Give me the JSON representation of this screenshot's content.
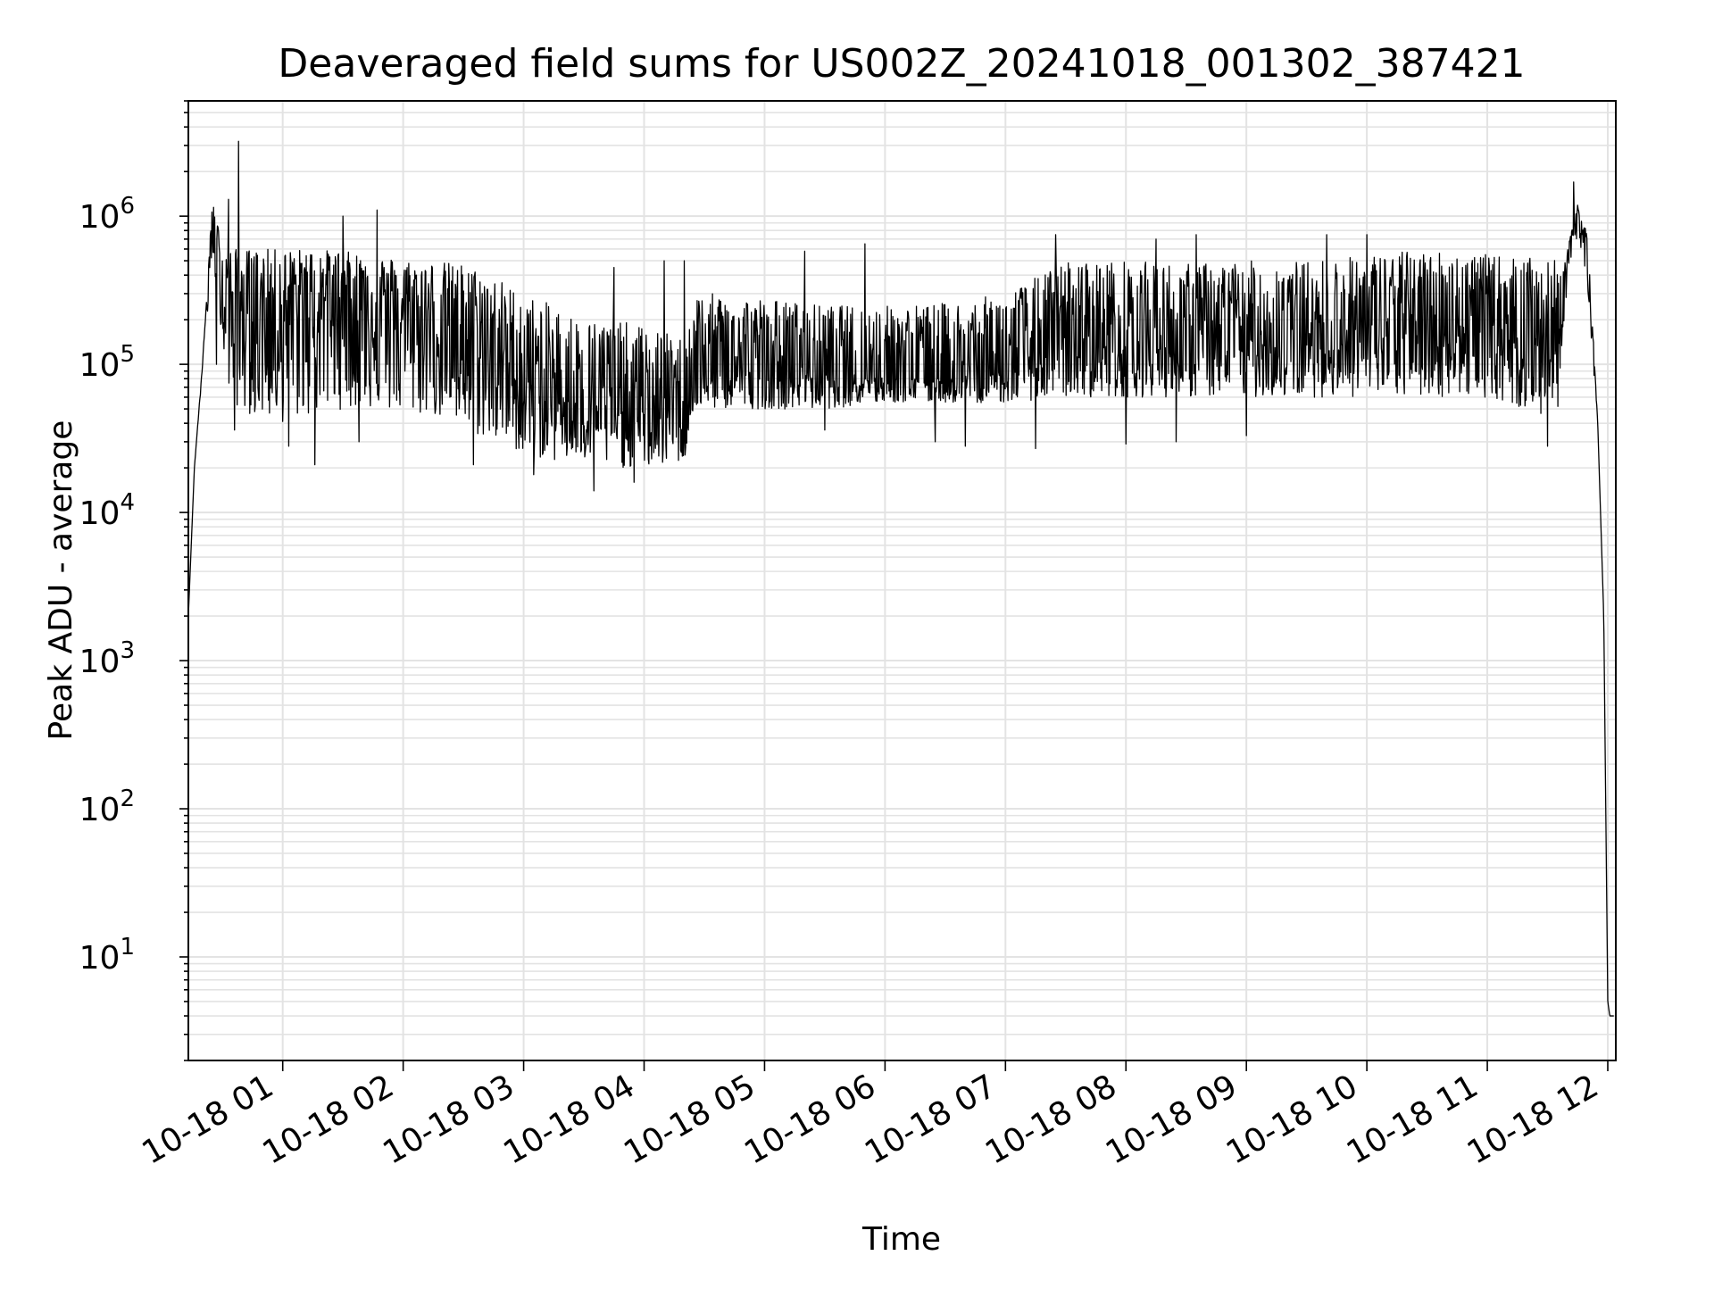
{
  "chart_data": {
    "type": "line",
    "title": "Deaveraged field sums for US002Z_20241018_001302_387421",
    "xlabel": "Time",
    "ylabel": "Peak ADU - average",
    "x_scale": "time",
    "y_scale": "log",
    "xlim": [
      "2024-10-18 00:13",
      "2024-10-18 12:04"
    ],
    "ylim": [
      2,
      6000000
    ],
    "grid": {
      "major": true,
      "minor": true
    },
    "x_ticks": [
      {
        "t": "2024-10-18 01:00",
        "label": "10-18 01"
      },
      {
        "t": "2024-10-18 02:00",
        "label": "10-18 02"
      },
      {
        "t": "2024-10-18 03:00",
        "label": "10-18 03"
      },
      {
        "t": "2024-10-18 04:00",
        "label": "10-18 04"
      },
      {
        "t": "2024-10-18 05:00",
        "label": "10-18 05"
      },
      {
        "t": "2024-10-18 06:00",
        "label": "10-18 06"
      },
      {
        "t": "2024-10-18 07:00",
        "label": "10-18 07"
      },
      {
        "t": "2024-10-18 08:00",
        "label": "10-18 08"
      },
      {
        "t": "2024-10-18 09:00",
        "label": "10-18 09"
      },
      {
        "t": "2024-10-18 10:00",
        "label": "10-18 10"
      },
      {
        "t": "2024-10-18 11:00",
        "label": "10-18 11"
      },
      {
        "t": "2024-10-18 12:00",
        "label": "10-18 12"
      }
    ],
    "y_ticks": [
      {
        "value": 10,
        "base": "10",
        "exp": "1"
      },
      {
        "value": 100,
        "base": "10",
        "exp": "2"
      },
      {
        "value": 1000,
        "base": "10",
        "exp": "3"
      },
      {
        "value": 10000,
        "base": "10",
        "exp": "4"
      },
      {
        "value": 100000,
        "base": "10",
        "exp": "5"
      },
      {
        "value": 1000000,
        "base": "10",
        "exp": "6"
      }
    ],
    "series": [
      {
        "color": "#000000",
        "envelope": {
          "x": [
            "2024-10-18 00:13",
            "2024-10-18 00:16",
            "2024-10-18 00:20",
            "2024-10-18 00:25",
            "2024-10-18 00:30",
            "2024-10-18 00:33",
            "2024-10-18 00:38",
            "2024-10-18 00:45",
            "2024-10-18 01:00",
            "2024-10-18 01:15",
            "2024-10-18 01:30",
            "2024-10-18 01:45",
            "2024-10-18 02:00",
            "2024-10-18 02:15",
            "2024-10-18 02:30",
            "2024-10-18 02:45",
            "2024-10-18 03:00",
            "2024-10-18 03:15",
            "2024-10-18 03:30",
            "2024-10-18 03:45",
            "2024-10-18 04:00",
            "2024-10-18 04:20",
            "2024-10-18 04:25",
            "2024-10-18 04:40",
            "2024-10-18 05:00",
            "2024-10-18 05:30",
            "2024-10-18 06:00",
            "2024-10-18 06:30",
            "2024-10-18 07:00",
            "2024-10-18 07:30",
            "2024-10-18 08:00",
            "2024-10-18 08:30",
            "2024-10-18 09:00",
            "2024-10-18 09:30",
            "2024-10-18 10:00",
            "2024-10-18 10:30",
            "2024-10-18 11:00",
            "2024-10-18 11:35",
            "2024-10-18 11:40",
            "2024-10-18 11:45",
            "2024-10-18 11:50",
            "2024-10-18 11:55",
            "2024-10-18 11:58",
            "2024-10-18 12:00",
            "2024-10-18 12:01",
            "2024-10-18 12:03"
          ],
          "low": [
            2000,
            20000,
            90000,
            500000,
            150000,
            60000,
            50000,
            45000,
            40000,
            45000,
            50000,
            50000,
            45000,
            45000,
            35000,
            30000,
            25000,
            22000,
            22000,
            20000,
            20000,
            22000,
            50000,
            50000,
            50000,
            50000,
            55000,
            55000,
            55000,
            60000,
            60000,
            60000,
            60000,
            60000,
            60000,
            60000,
            60000,
            40000,
            400000,
            700000,
            300000,
            40000,
            2000,
            5,
            4,
            4
          ],
          "mid": [
            2000,
            20000,
            100000,
            1000000,
            300000,
            250000,
            250000,
            230000,
            220000,
            280000,
            300000,
            250000,
            200000,
            180000,
            150000,
            110000,
            70000,
            60000,
            55000,
            50000,
            45000,
            45000,
            85000,
            90000,
            90000,
            85000,
            85000,
            80000,
            90000,
            130000,
            140000,
            130000,
            140000,
            140000,
            150000,
            180000,
            170000,
            160000,
            550000,
            1000000,
            600000,
            40000,
            2000,
            5,
            4,
            4
          ],
          "high": [
            2000,
            20000,
            100000,
            1300000,
            650000,
            600000,
            600000,
            600000,
            600000,
            600000,
            580000,
            550000,
            520000,
            500000,
            480000,
            400000,
            300000,
            250000,
            200000,
            200000,
            180000,
            150000,
            300000,
            300000,
            280000,
            250000,
            250000,
            260000,
            300000,
            500000,
            500000,
            480000,
            500000,
            500000,
            550000,
            600000,
            550000,
            500000,
            600000,
            1200000,
            800000,
            40000,
            2000,
            5,
            4,
            4
          ]
        },
        "spikes": [
          {
            "x": "2024-10-18 00:38",
            "y": 3200000
          },
          {
            "x": "2024-10-18 00:33",
            "y": 1300000
          },
          {
            "x": "2024-10-18 01:30",
            "y": 1000000
          },
          {
            "x": "2024-10-18 01:47",
            "y": 1100000
          },
          {
            "x": "2024-10-18 03:45",
            "y": 450000
          },
          {
            "x": "2024-10-18 04:10",
            "y": 500000
          },
          {
            "x": "2024-10-18 04:20",
            "y": 500000
          },
          {
            "x": "2024-10-18 05:20",
            "y": 580000
          },
          {
            "x": "2024-10-18 05:50",
            "y": 650000
          },
          {
            "x": "2024-10-18 06:40",
            "y": 650000
          },
          {
            "x": "2024-10-18 07:25",
            "y": 750000
          },
          {
            "x": "2024-10-18 08:15",
            "y": 700000
          },
          {
            "x": "2024-10-18 08:35",
            "y": 750000
          },
          {
            "x": "2024-10-18 09:40",
            "y": 750000
          },
          {
            "x": "2024-10-18 10:00",
            "y": 750000
          },
          {
            "x": "2024-10-18 11:43",
            "y": 1700000
          }
        ],
        "dips": [
          {
            "x": "2024-10-18 00:27",
            "y": 100000
          },
          {
            "x": "2024-10-18 00:36",
            "y": 36000
          },
          {
            "x": "2024-10-18 00:48",
            "y": 60000
          },
          {
            "x": "2024-10-18 01:03",
            "y": 28000
          },
          {
            "x": "2024-10-18 01:16",
            "y": 21000
          },
          {
            "x": "2024-10-18 01:38",
            "y": 30000
          },
          {
            "x": "2024-10-18 02:35",
            "y": 21000
          },
          {
            "x": "2024-10-18 03:05",
            "y": 18000
          },
          {
            "x": "2024-10-18 03:35",
            "y": 14000
          },
          {
            "x": "2024-10-18 03:55",
            "y": 16000
          },
          {
            "x": "2024-10-18 05:30",
            "y": 36000
          },
          {
            "x": "2024-10-18 06:25",
            "y": 30000
          },
          {
            "x": "2024-10-18 06:40",
            "y": 28000
          },
          {
            "x": "2024-10-18 07:15",
            "y": 27000
          },
          {
            "x": "2024-10-18 08:00",
            "y": 29000
          },
          {
            "x": "2024-10-18 08:25",
            "y": 30000
          },
          {
            "x": "2024-10-18 09:00",
            "y": 33000
          },
          {
            "x": "2024-10-18 11:30",
            "y": 28000
          }
        ]
      }
    ]
  }
}
